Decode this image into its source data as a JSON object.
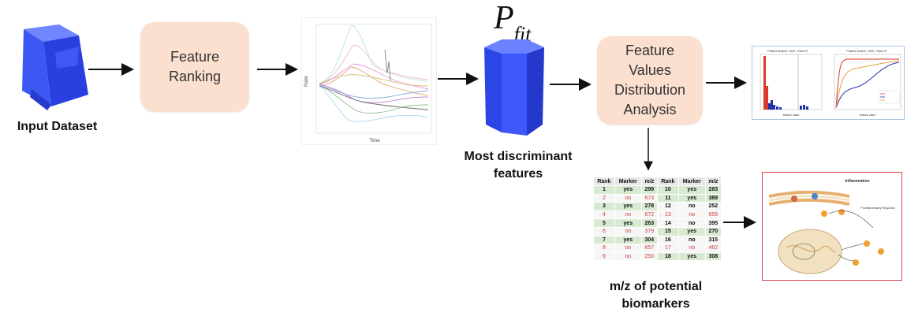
{
  "nodes": {
    "input_caption": "Input Dataset",
    "feature_ranking": [
      "Feature",
      "Ranking"
    ],
    "pfit_symbol": "P",
    "pfit_subscript": "fit",
    "discriminant_caption": [
      "Most discriminant",
      "features"
    ],
    "distribution_box": [
      "Feature",
      "Values",
      "Distribution",
      "Analysis"
    ],
    "biomarker_caption": [
      "m/z of potential",
      "biomarkers"
    ]
  },
  "timeseries_plot": {
    "xlabel": "Time",
    "ylabel": "Ratio"
  },
  "histogram_plots": {
    "left_title": "Positive feature: 1000 - Rank 97",
    "right_title": "Positive feature: 1000 - Rank 97",
    "left_xlabel": "feature value",
    "right_xlabel": "feature value"
  },
  "pathway_figure": {
    "title": "Inflammation",
    "label_response": "Proinflammatory Response"
  },
  "rank_table": {
    "headers": [
      "Rank",
      "Marker",
      "m/z",
      "Rank",
      "Marker",
      "m/z"
    ],
    "rows": [
      {
        "rank_a": "1",
        "marker_a": "yes",
        "mz_a": "299",
        "rank_b": "10",
        "marker_b": "yes",
        "mz_b": "283"
      },
      {
        "rank_a": "2",
        "marker_a": "no",
        "mz_a": "673",
        "rank_b": "11",
        "marker_b": "yes",
        "mz_b": "389"
      },
      {
        "rank_a": "3",
        "marker_a": "yes",
        "mz_a": "278",
        "rank_b": "12",
        "marker_b": "no",
        "mz_b": "252"
      },
      {
        "rank_a": "4",
        "marker_a": "no",
        "mz_a": "672",
        "rank_b": "13",
        "marker_b": "no",
        "mz_b": "656"
      },
      {
        "rank_a": "5",
        "marker_a": "yes",
        "mz_a": "263",
        "rank_b": "14",
        "marker_b": "no",
        "mz_b": "395"
      },
      {
        "rank_a": "6",
        "marker_a": "no",
        "mz_a": "379",
        "rank_b": "15",
        "marker_b": "yes",
        "mz_b": "270"
      },
      {
        "rank_a": "7",
        "marker_a": "yes",
        "mz_a": "304",
        "rank_b": "16",
        "marker_b": "no",
        "mz_b": "315"
      },
      {
        "rank_a": "8",
        "marker_a": "no",
        "mz_a": "657",
        "rank_b": "17",
        "marker_b": "no",
        "mz_b": "462"
      },
      {
        "rank_a": "9",
        "marker_a": "no",
        "mz_a": "250",
        "rank_b": "18",
        "marker_b": "yes",
        "mz_b": "308"
      }
    ]
  },
  "colors": {
    "cube_blue": "#3b54f0",
    "box_fill": "#fbe0d0",
    "arrow": "#111111",
    "pathway_border": "#d94a4a",
    "histogram_border": "#a8c8e8"
  }
}
